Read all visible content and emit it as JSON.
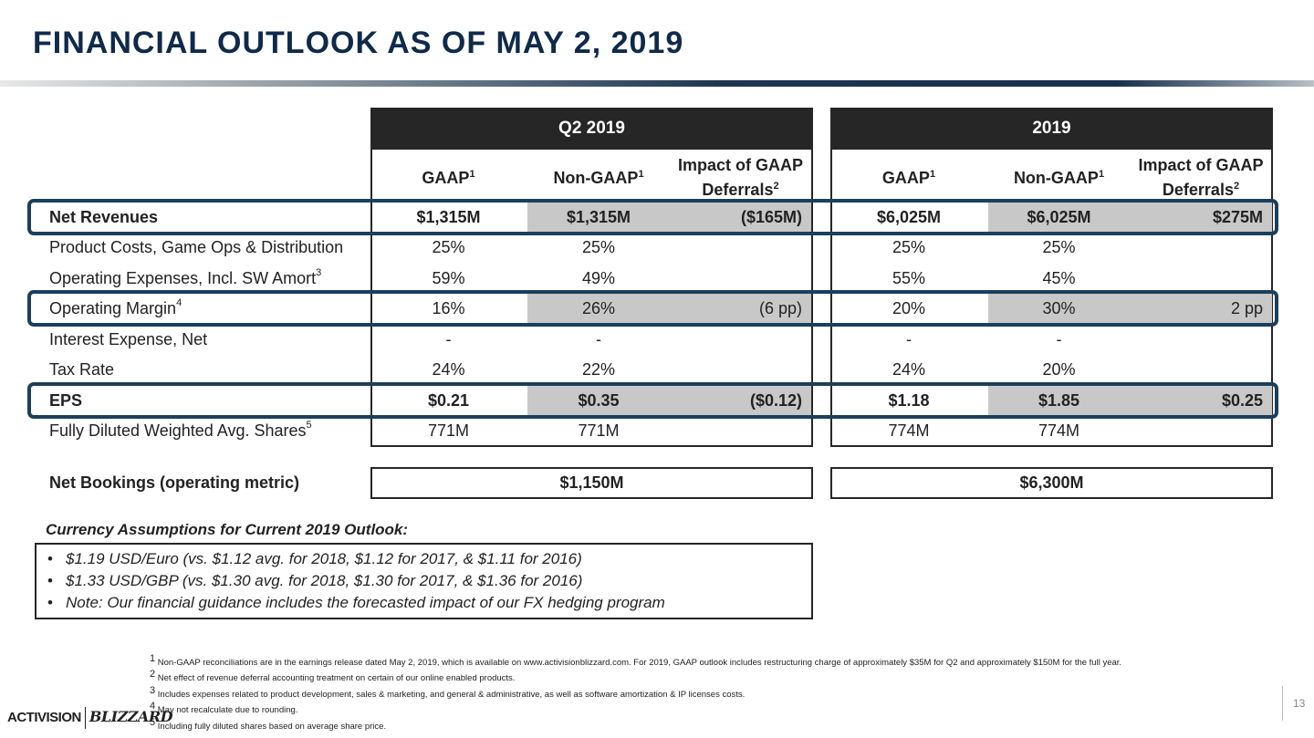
{
  "title": "FINANCIAL OUTLOOK AS OF MAY 2, 2019",
  "periods": [
    "Q2 2019",
    "2019"
  ],
  "columns": [
    {
      "label": "GAAP",
      "sup": "1"
    },
    {
      "label": "Non-GAAP",
      "sup": "1"
    },
    {
      "label1": "Impact of GAAP",
      "label2": "Deferrals",
      "sup": "2"
    }
  ],
  "rows": [
    {
      "label": "Net Revenues",
      "sup": "",
      "q2": [
        "$1,315M",
        "$1,315M",
        "($165M)"
      ],
      "fy": [
        "$6,025M",
        "$6,025M",
        "$275M"
      ]
    },
    {
      "label": "Product Costs, Game Ops & Distribution",
      "sup": "",
      "q2": [
        "25%",
        "25%",
        ""
      ],
      "fy": [
        "25%",
        "25%",
        ""
      ]
    },
    {
      "label": "Operating Expenses, Incl. SW Amort",
      "sup": "3",
      "q2": [
        "59%",
        "49%",
        ""
      ],
      "fy": [
        "55%",
        "45%",
        ""
      ]
    },
    {
      "label": "Operating Margin",
      "sup": "4",
      "q2": [
        "16%",
        "26%",
        "(6 pp)"
      ],
      "fy": [
        "20%",
        "30%",
        "2 pp"
      ]
    },
    {
      "label": "Interest Expense, Net",
      "sup": "",
      "q2": [
        "-",
        "-",
        ""
      ],
      "fy": [
        "-",
        "-",
        ""
      ]
    },
    {
      "label": "Tax Rate",
      "sup": "",
      "q2": [
        "24%",
        "22%",
        ""
      ],
      "fy": [
        "24%",
        "20%",
        ""
      ]
    },
    {
      "label": "EPS",
      "sup": "",
      "q2": [
        "$0.21",
        "$0.35",
        "($0.12)"
      ],
      "fy": [
        "$1.18",
        "$1.85",
        "$0.25"
      ]
    },
    {
      "label": "Fully Diluted Weighted Avg. Shares",
      "sup": "5",
      "q2": [
        "771M",
        "771M",
        ""
      ],
      "fy": [
        "774M",
        "774M",
        ""
      ]
    }
  ],
  "net_bookings": {
    "label": "Net Bookings (operating metric)",
    "q2": "$1,150M",
    "fy": "$6,300M"
  },
  "currency": {
    "title": "Currency Assumptions for Current 2019 Outlook:",
    "bullet": "•",
    "items": [
      "$1.19 USD/Euro (vs. $1.12 avg. for 2018, $1.12 for 2017, & $1.11 for 2016)",
      "$1.33 USD/GBP (vs. $1.30 avg. for 2018, $1.30 for 2017, & $1.36 for 2016)",
      "Note: Our financial guidance includes the forecasted impact of our FX hedging program"
    ]
  },
  "footnotes": [
    {
      "n": "1",
      "text": "Non-GAAP reconciliations are in the earnings release dated May 2, 2019, which is available on www.activisionblizzard.com. For 2019, GAAP outlook includes restructuring charge of approximately $35M for Q2 and approximately $150M for the full year."
    },
    {
      "n": "2",
      "text": "Net effect of revenue deferral accounting treatment on certain of our online enabled products."
    },
    {
      "n": "3",
      "text": "Includes expenses related to product development, sales & marketing, and general & administrative, as well as software amortization & IP licenses costs."
    },
    {
      "n": "4",
      "text": "May not recalculate due to rounding."
    },
    {
      "n": "5",
      "text": "Including fully diluted shares based on average share price."
    }
  ],
  "logo": {
    "part1": "ACTIVISION",
    "part2": "BLIZZARD"
  },
  "page_number": "13"
}
